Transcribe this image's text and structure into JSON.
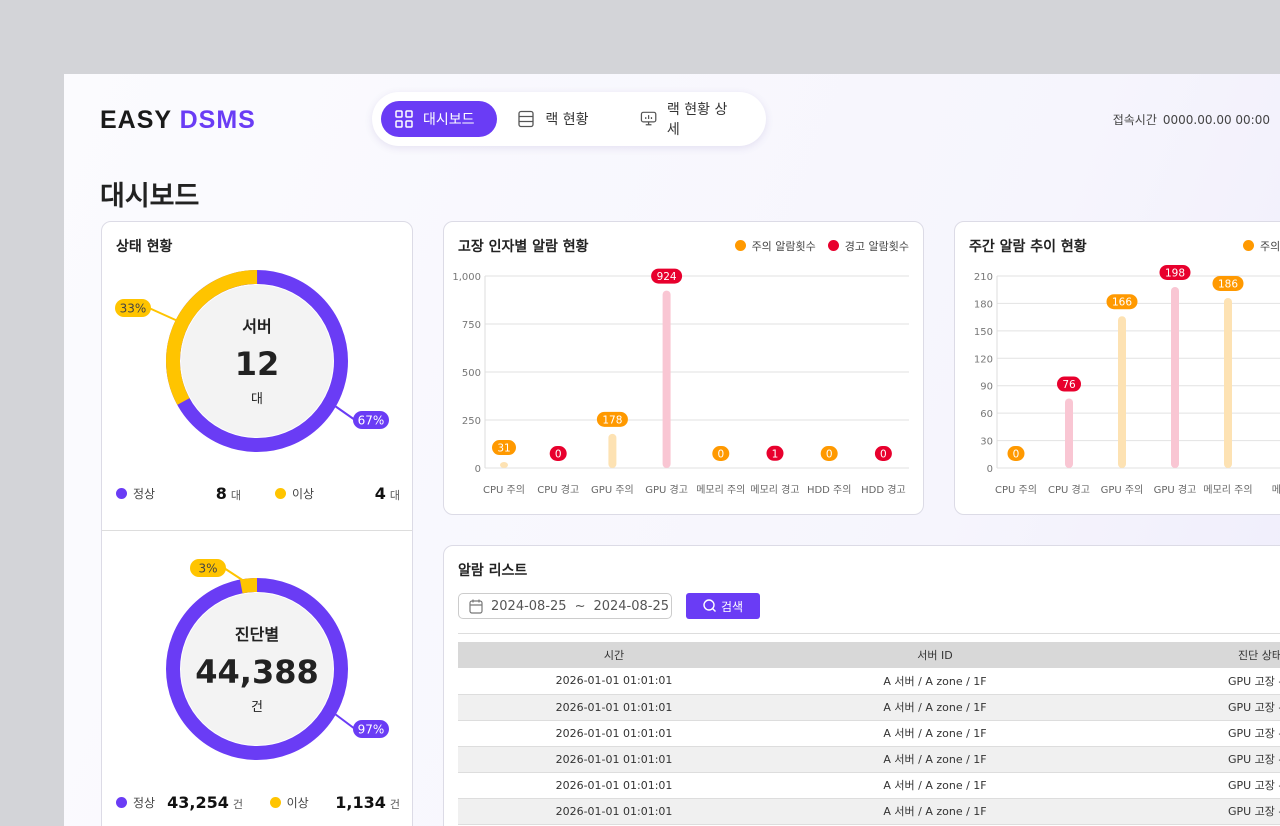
{
  "logo": {
    "part1": "EASY",
    "part2": "DSMS"
  },
  "nav": [
    {
      "label": "대시보드",
      "icon": "grid-icon",
      "active": true
    },
    {
      "label": "랙 현황",
      "icon": "server-rack-icon"
    },
    {
      "label": "랙 현황 상세",
      "icon": "monitor-icon"
    }
  ],
  "access": {
    "label": "접속시간",
    "value": "0000.00.00 00:00"
  },
  "page_title": "대시보드",
  "colors": {
    "accent": "#6a3cf5",
    "normal": "#6a3cf5",
    "abnormal": "#ffc400",
    "caution": "#ff9900",
    "warning": "#e8002d",
    "caution_bar": "#fde2b3",
    "warning_bar": "#f9c6d3"
  },
  "status": {
    "title": "상태 현황",
    "server": {
      "label": "서버",
      "count": "12",
      "unit": "대",
      "normal_pct": 67,
      "abnormal_pct": 33,
      "normal_pct_label": "67%",
      "abnormal_pct_label": "33%",
      "normal_label": "정상",
      "normal_value": "8",
      "abnormal_label": "이상",
      "abnormal_value": "4",
      "value_unit": "대"
    },
    "diag": {
      "label": "진단별",
      "count": "44,388",
      "unit": "건",
      "normal_pct": 97,
      "abnormal_pct": 3,
      "normal_pct_label": "97%",
      "abnormal_pct_label": "3%",
      "normal_label": "정상",
      "normal_value": "43,254",
      "abnormal_label": "이상",
      "abnormal_value": "1,134",
      "value_unit": "건"
    }
  },
  "chart_data": [
    {
      "type": "bar",
      "title": "고장 인자별 알람 현황",
      "legend": [
        "주의 알람횟수",
        "경고 알람횟수"
      ],
      "legend_placement": "top-right",
      "grid": true,
      "ylim": [
        0,
        1000
      ],
      "yticks": [
        "0",
        "250",
        "500",
        "750",
        "1,000"
      ],
      "categories": [
        "CPU 주의",
        "CPU 경고",
        "GPU 주의",
        "GPU 경고",
        "메모리 주의",
        "메모리 경고",
        "HDD 주의",
        "HDD 경고"
      ],
      "values": [
        31,
        0,
        178,
        924,
        0,
        1,
        0,
        0
      ],
      "kinds": [
        "caution",
        "warning",
        "caution",
        "warning",
        "caution",
        "warning",
        "caution",
        "warning"
      ]
    },
    {
      "type": "bar",
      "title": "주간 알람 추이 현황",
      "legend": [
        "주의"
      ],
      "legend_placement": "top-right",
      "grid": true,
      "ylim": [
        0,
        210
      ],
      "yticks": [
        "0",
        "30",
        "60",
        "90",
        "120",
        "150",
        "180",
        "210"
      ],
      "categories": [
        "CPU 주의",
        "CPU 경고",
        "GPU 주의",
        "GPU 경고",
        "메모리 주의",
        "메모"
      ],
      "values": [
        0,
        76,
        166,
        198,
        186,
        null
      ],
      "kinds": [
        "caution",
        "warning",
        "caution",
        "warning",
        "caution",
        "warning"
      ]
    }
  ],
  "alarm": {
    "title": "알람 리스트",
    "date_from": "2024-08-25",
    "date_sep": "~",
    "date_to": "2024-08-25",
    "search_label": "검색",
    "columns": [
      "시간",
      "서버 ID",
      "진단 상태"
    ],
    "rows": [
      [
        "2026-01-01 01:01:01",
        "A 서버 / A zone / 1F",
        "GPU 고장 - 경"
      ],
      [
        "2026-01-01 01:01:01",
        "A 서버 / A zone / 1F",
        "GPU 고장 - 경"
      ],
      [
        "2026-01-01 01:01:01",
        "A 서버 / A zone / 1F",
        "GPU 고장 - 경"
      ],
      [
        "2026-01-01 01:01:01",
        "A 서버 / A zone / 1F",
        "GPU 고장 - 경"
      ],
      [
        "2026-01-01 01:01:01",
        "A 서버 / A zone / 1F",
        "GPU 고장 - 경"
      ],
      [
        "2026-01-01 01:01:01",
        "A 서버 / A zone / 1F",
        "GPU 고장 - 경"
      ]
    ]
  }
}
